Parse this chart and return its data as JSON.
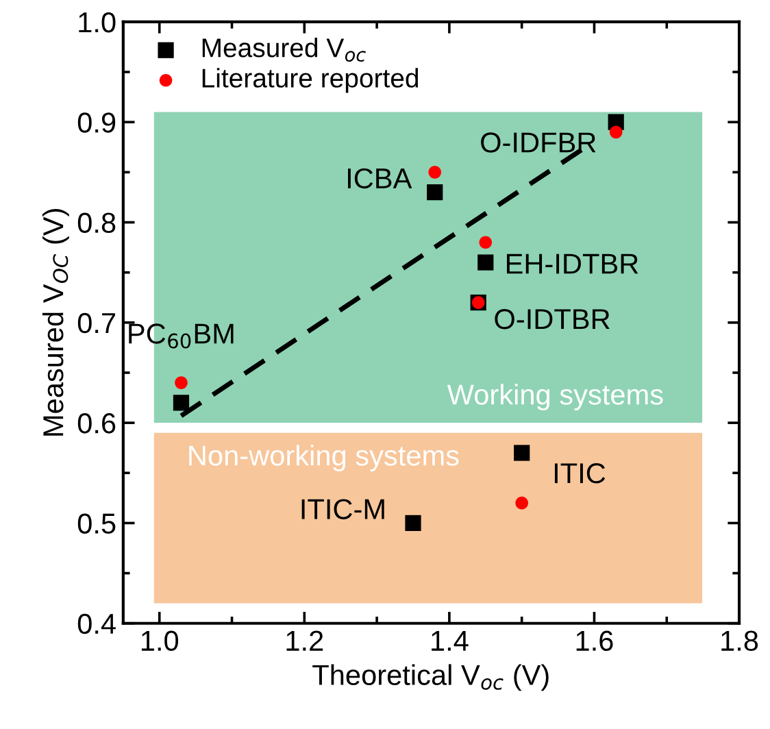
{
  "chart_data": {
    "type": "scatter",
    "xlabel": "Theoretical V$_{oc}$ (V)",
    "ylabel": "Measured V$_{OC}$ (V)",
    "xlim": [
      0.95,
      1.8
    ],
    "ylim": [
      0.4,
      1.0
    ],
    "xticks": [
      {
        "value": 1.0,
        "label": "1.0"
      },
      1.2,
      1.4,
      1.6,
      1.8
    ],
    "yticks": [
      0.4,
      0.5,
      0.6,
      0.7,
      0.8,
      0.9,
      {
        "value": 1.0,
        "label": "1.0"
      }
    ],
    "grid": false,
    "legend": "top left",
    "series": [
      {
        "name": "Measured V$_{oc}$",
        "color": "#000000",
        "marker": "square",
        "x": [
          1.03,
          1.38,
          1.45,
          1.44,
          1.63,
          1.5,
          1.35
        ],
        "values": [
          0.62,
          0.83,
          0.76,
          0.72,
          0.9,
          0.57,
          0.5
        ]
      },
      {
        "name": "Literature reported",
        "color": "#ff0000",
        "marker": "circle",
        "x": [
          1.03,
          1.38,
          1.45,
          1.44,
          1.63,
          1.5
        ],
        "values": [
          0.64,
          0.85,
          0.78,
          0.72,
          0.89,
          0.52
        ]
      },
      {
        "type": "line",
        "color": "#000000",
        "line_style": "dashed",
        "marker": "none",
        "x": [
          1.03,
          1.59
        ],
        "values": [
          0.607,
          0.876
        ]
      }
    ],
    "bands": [
      {
        "axis": "y",
        "from": 0.6,
        "to": 0.91,
        "label": "Working systems",
        "color": "#8fd3b4"
      },
      {
        "axis": "y",
        "from": 0.42,
        "to": 0.59,
        "label": "Non-working systems",
        "color": "#f7c69b"
      }
    ],
    "annotations": [
      {
        "text": "PC$_{60}$BM",
        "x": 1.03,
        "y": 0.62
      },
      {
        "text": "ICBA",
        "x": 1.38,
        "y": 0.83
      },
      {
        "text": "EH-IDTBR",
        "x": 1.45,
        "y": 0.76
      },
      {
        "text": "O-IDTBR",
        "x": 1.44,
        "y": 0.72
      },
      {
        "text": "O-IDFBR",
        "x": 1.63,
        "y": 0.9
      },
      {
        "text": "ITIC",
        "x": 1.5,
        "y": 0.57
      },
      {
        "text": "ITIC-M",
        "x": 1.35,
        "y": 0.5
      }
    ]
  }
}
